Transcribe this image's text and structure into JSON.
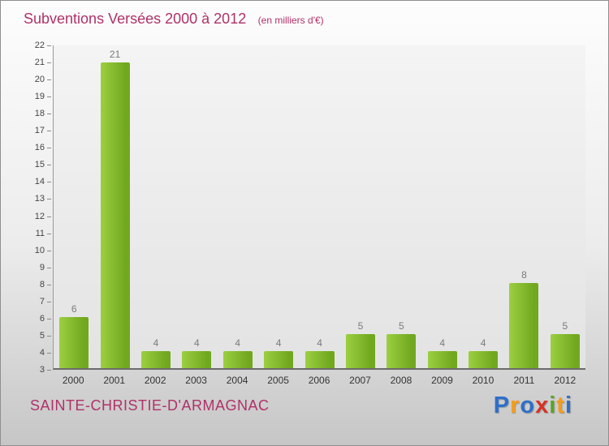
{
  "header": {
    "title": "Subventions Versées 2000 à 2012",
    "subtitle": "(en milliers d'€)"
  },
  "footer": {
    "commune": "SAINTE-CHRISTIE-D'ARMAGNAC"
  },
  "logo": {
    "name": "Proxiti",
    "letters": [
      {
        "ch": "P",
        "color": "#2e6fc9"
      },
      {
        "ch": "r",
        "color": "#f49d1c"
      },
      {
        "ch": "o",
        "color": "#2e6fc9"
      },
      {
        "ch": "x",
        "color": "#d63226"
      },
      {
        "ch": "i",
        "color": "#58a528"
      },
      {
        "ch": "t",
        "color": "#f49d1c"
      },
      {
        "ch": "i",
        "color": "#2e6fc9"
      }
    ]
  },
  "colors": {
    "accent": "#b03168",
    "bar_light": "#9ccf41",
    "bar_dark": "#71a81f",
    "value_label": "#7a7a7a",
    "axis_label": "#444444"
  },
  "chart_data": {
    "type": "bar",
    "title": "Subventions Versées 2000 à 2012",
    "subtitle": "(en milliers d'€)",
    "categories": [
      "2000",
      "2001",
      "2002",
      "2003",
      "2004",
      "2005",
      "2006",
      "2007",
      "2008",
      "2009",
      "2010",
      "2011",
      "2012"
    ],
    "values": [
      6,
      21,
      4,
      4,
      4,
      4,
      4,
      5,
      5,
      4,
      4,
      8,
      5
    ],
    "xlabel": "",
    "ylabel": "",
    "ylim": [
      3,
      22
    ],
    "ytick_step": 1,
    "grid": false,
    "legend": false,
    "value_labels": true
  }
}
